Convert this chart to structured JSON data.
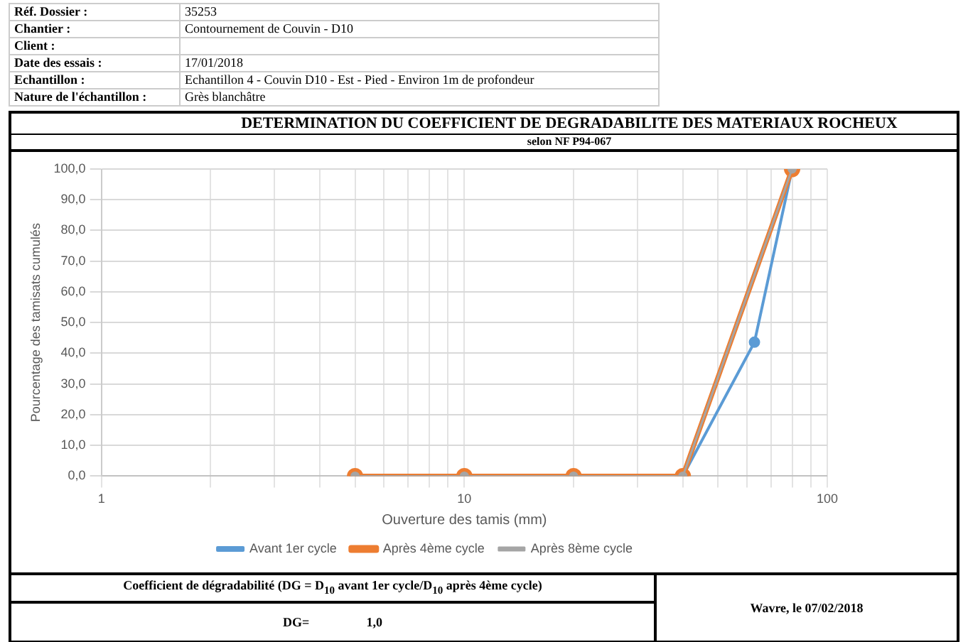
{
  "chart_data": {
    "type": "line",
    "title": "DETERMINATION DU COEFFICIENT DE DEGRADABILITE DES MATERIAUX ROCHEUX",
    "subtitle": "selon NF P94-067",
    "xlabel": "Ouverture des tamis (mm)",
    "ylabel": "Pourcentage des tamisats cumulés",
    "x": [
      5,
      10,
      20,
      40,
      80
    ],
    "series": [
      {
        "name": "Avant 1er cycle",
        "color": "#5b9bd5",
        "x": [
          40,
          63,
          80
        ],
        "values": [
          0,
          43.6,
          100
        ]
      },
      {
        "name": "Après 4ème cycle",
        "color": "#ed7d31",
        "values": [
          0,
          0,
          0,
          0,
          100
        ]
      },
      {
        "name": "Après 8ème cycle",
        "color": "#a5a5a5",
        "values": [
          0,
          0,
          0,
          0,
          100
        ]
      }
    ],
    "log": "x",
    "xlim": [
      1,
      100
    ],
    "xticks": [
      1,
      {
        "value": 2,
        "label": null
      },
      {
        "value": 3,
        "label": null
      },
      {
        "value": 4,
        "label": null
      },
      {
        "value": 5,
        "label": null
      },
      {
        "value": 6,
        "label": null
      },
      {
        "value": 7,
        "label": null
      },
      {
        "value": 8,
        "label": null
      },
      {
        "value": 9,
        "label": null
      },
      10,
      {
        "value": 20,
        "label": null
      },
      {
        "value": 30,
        "label": null
      },
      {
        "value": 40,
        "label": null
      },
      {
        "value": 50,
        "label": null
      },
      {
        "value": 60,
        "label": null
      },
      {
        "value": 70,
        "label": null
      },
      {
        "value": 80,
        "label": null
      },
      {
        "value": 90,
        "label": null
      },
      100
    ],
    "ylim": [
      0,
      100
    ],
    "yticks": [
      {
        "value": 0,
        "label": "0,0"
      },
      {
        "value": 10,
        "label": "10,0"
      },
      {
        "value": 20,
        "label": "20,0"
      },
      {
        "value": 30,
        "label": "30,0"
      },
      {
        "value": 40,
        "label": "40,0"
      },
      {
        "value": 50,
        "label": "50,0"
      },
      {
        "value": 60,
        "label": "60,0"
      },
      {
        "value": 70,
        "label": "70,0"
      },
      {
        "value": 80,
        "label": "80,0"
      },
      {
        "value": 90,
        "label": "90,0"
      },
      {
        "value": 100,
        "label": "100,0"
      }
    ],
    "grid": true,
    "legend": "bottom",
    "marker": "circle",
    "line_style": "solid",
    "annotations": [
      "Réf. Dossier :",
      "35253",
      "Chantier :",
      "Contournement de Couvin - D10",
      "Client :",
      "Date des essais :",
      "17/01/2018",
      "Echantillon :",
      "Echantillon 4 - Couvin D10 - Est - Pied - Environ 1m de profondeur",
      "Nature de l'échantillon :",
      "Grès blanchâtre",
      "Coefficient de dégradabilité (DG = D$_{10}$ avant 1er cycle/D$_{10}$ après 4ème cycle)",
      "DG=",
      "1,0",
      "Wavre, le 07/02/2018"
    ]
  }
}
